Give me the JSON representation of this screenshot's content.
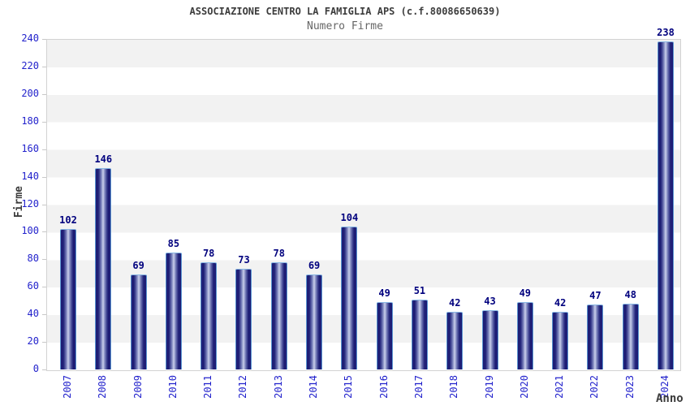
{
  "title": "ASSOCIAZIONE CENTRO LA FAMIGLIA APS (c.f.80086650639)",
  "subtitle": "Numero Firme",
  "chart_data": {
    "type": "bar",
    "title": "ASSOCIAZIONE CENTRO LA FAMIGLIA APS (c.f.80086650639)",
    "subtitle": "Numero Firme",
    "xlabel": "Anno",
    "ylabel": "Firme",
    "categories": [
      "2007",
      "2008",
      "2009",
      "2010",
      "2011",
      "2012",
      "2013",
      "2014",
      "2015",
      "2016",
      "2017",
      "2018",
      "2019",
      "2020",
      "2021",
      "2022",
      "2023",
      "2024"
    ],
    "values": [
      102,
      146,
      69,
      85,
      78,
      73,
      78,
      69,
      104,
      49,
      51,
      42,
      43,
      49,
      42,
      47,
      48,
      238
    ],
    "yticks": [
      0,
      20,
      40,
      60,
      80,
      100,
      120,
      140,
      160,
      180,
      200,
      220,
      240
    ],
    "ylim": [
      0,
      240
    ],
    "grid": "horizontal-alternating-bands",
    "legend_position": "none",
    "colors": {
      "bar_dark": "#14146a",
      "bar_highlight": "#cdd2ec",
      "bar_border": "#5b96d2",
      "value_label": "#00007e",
      "tick_label": "#2222cc",
      "band_gray": "#f2f2f2",
      "band_white": "#ffffff",
      "axis_border": "#d2d2d2",
      "title_color": "#3c3c3c",
      "subtitle_color": "#666666"
    }
  }
}
